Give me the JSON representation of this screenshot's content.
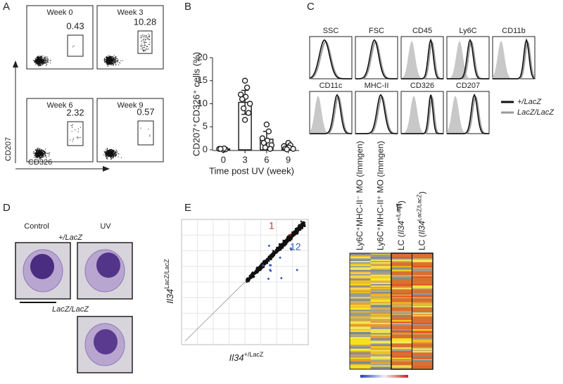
{
  "panel_labels": [
    "A",
    "B",
    "C",
    "D",
    "E",
    "F"
  ],
  "panel_a": {
    "plots": [
      {
        "title": "Week 0",
        "gate_value": "0.43"
      },
      {
        "title": "Week 3",
        "gate_value": "10.28"
      },
      {
        "title": "Week 6",
        "gate_value": "2.32"
      },
      {
        "title": "Week 9",
        "gate_value": "0.57"
      }
    ],
    "y_label": "CD207",
    "x_label": "CD326"
  },
  "chart_data": {
    "type": "bar",
    "categories": [
      "0",
      "3",
      "6",
      "9"
    ],
    "values": [
      0.2,
      10.3,
      2.3,
      0.6
    ],
    "errors": [
      0.1,
      2.6,
      1.7,
      0.4
    ],
    "points": [
      [
        0.0,
        0.1,
        0.2,
        0.3,
        0.2
      ],
      [
        15,
        13.5,
        12,
        11.5,
        11,
        10,
        9,
        8,
        6.5
      ],
      [
        5.5,
        4,
        2.5,
        2,
        1.5,
        1,
        0.5,
        0.2
      ],
      [
        1.5,
        1,
        0.8,
        0.5,
        0.3,
        0.2,
        0.1
      ]
    ],
    "ylim": [
      0,
      20
    ],
    "yticks": [
      0,
      5,
      10,
      15,
      20
    ],
    "y_label": "CD207⁺CD326⁺ cells (%)",
    "x_label": "Time post UV (week)",
    "color": "#ffffff"
  },
  "panel_c": {
    "histograms": [
      "SSC",
      "FSC",
      "CD45",
      "Ly6C",
      "CD11b",
      "CD11c",
      "MHC-II",
      "CD326",
      "CD207"
    ],
    "legend": [
      "+/LacZ",
      "LacZ/LacZ"
    ]
  },
  "panel_d": {
    "columns": [
      "Control",
      "UV"
    ],
    "genotypes": [
      "+/LacZ",
      "LacZ/LacZ"
    ]
  },
  "panel_e": {
    "y_label": {
      "gene": "Il34",
      "sup": "LacZ/LacZ"
    },
    "x_label": {
      "gene": "Il34",
      "sup": "+/LacZ"
    },
    "up_count": "1",
    "down_count": "12"
  },
  "panel_f": {
    "columns": [
      {
        "text": "Ly6C⁺MHC-II⁻ MO (Immgen)"
      },
      {
        "text": "Ly6C⁺MHC-II⁺ MO (Immgen)"
      },
      {
        "pre": "LC (",
        "gene": "Il34",
        "sup": "+/LacZ",
        "post": ")"
      },
      {
        "pre": "LC (",
        "gene": "Il34",
        "sup": "LacZ/LacZ",
        "post": ")"
      }
    ]
  }
}
